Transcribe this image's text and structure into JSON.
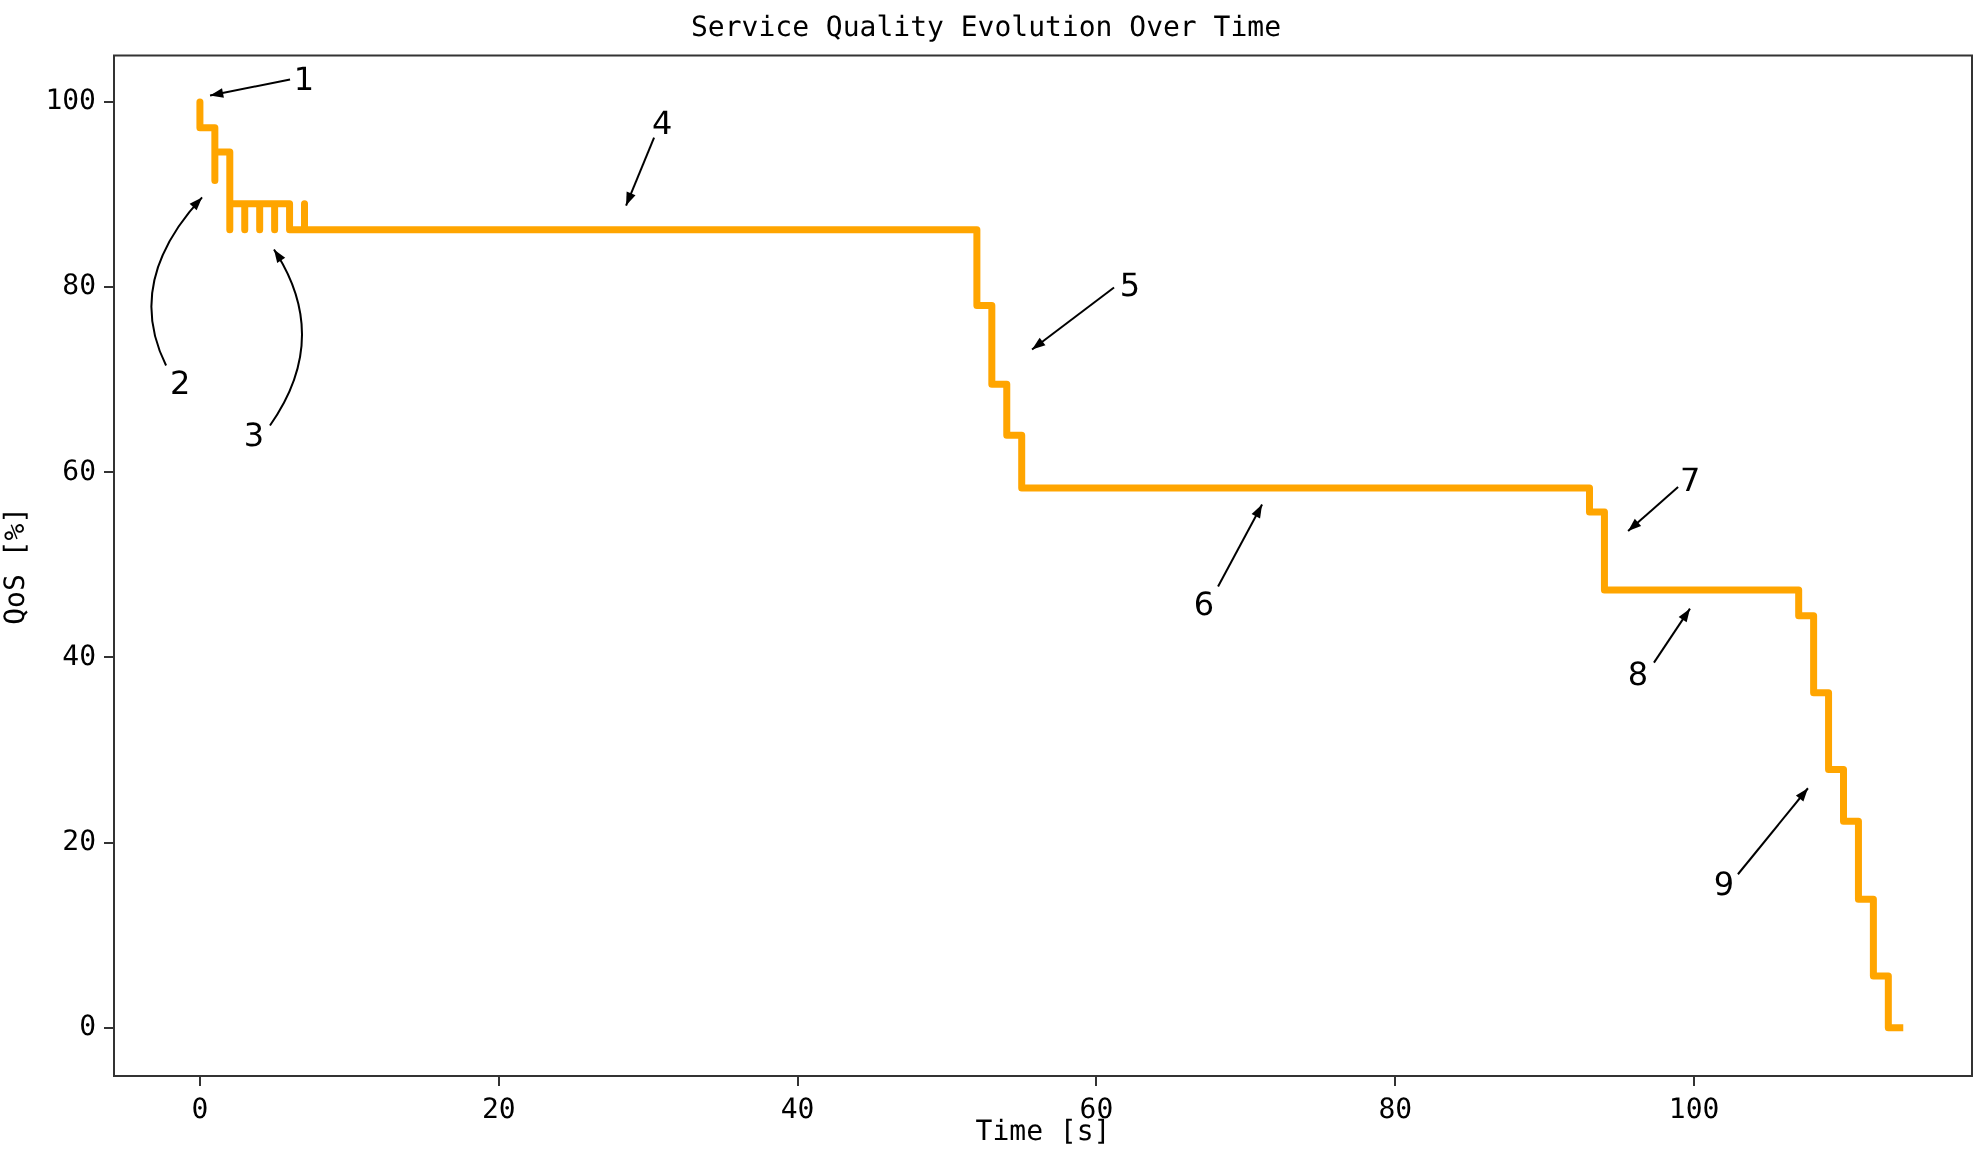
{
  "chart_data": {
    "type": "line",
    "title": "Service Quality Evolution Over Time",
    "xlabel": "Time [s]",
    "ylabel": "QoS [%]",
    "xlim": [
      -5.75,
      118.6
    ],
    "ylim": [
      -5.2,
      105
    ],
    "xticks": [
      0,
      20,
      40,
      60,
      80,
      100
    ],
    "yticks": [
      0,
      20,
      40,
      60,
      80,
      100
    ],
    "grid": false,
    "legend": false,
    "marker": "none",
    "line_style": "solid",
    "series": [
      {
        "color": "#ffa500",
        "x": [
          0,
          0,
          1,
          1,
          1,
          2,
          2,
          2,
          3,
          3,
          3,
          4,
          4,
          4,
          5,
          5,
          5,
          6,
          6,
          7,
          7,
          7,
          52,
          52,
          53,
          53,
          54,
          54,
          55,
          55,
          93,
          93,
          94,
          94,
          107,
          107,
          108,
          108,
          109,
          109,
          110,
          110,
          111,
          111,
          112,
          112,
          113,
          113,
          114
        ],
        "values": [
          100,
          97.2,
          97.2,
          91.5,
          94.6,
          94.6,
          86.2,
          89,
          89,
          86.2,
          89,
          89,
          86.2,
          89,
          89,
          86.2,
          89,
          89,
          86.2,
          86.2,
          89,
          86.2,
          86.2,
          78,
          78,
          69.5,
          69.5,
          64,
          64,
          58.3,
          58.3,
          55.7,
          55.7,
          47.3,
          47.3,
          44.5,
          44.5,
          36.2,
          36.2,
          27.9,
          27.9,
          22.3,
          22.3,
          13.9,
          13.9,
          5.6,
          5.6,
          0,
          0
        ]
      }
    ],
    "annotations": [
      "1",
      "2",
      "3",
      "4",
      "5",
      "6",
      "7",
      "8",
      "9"
    ]
  }
}
